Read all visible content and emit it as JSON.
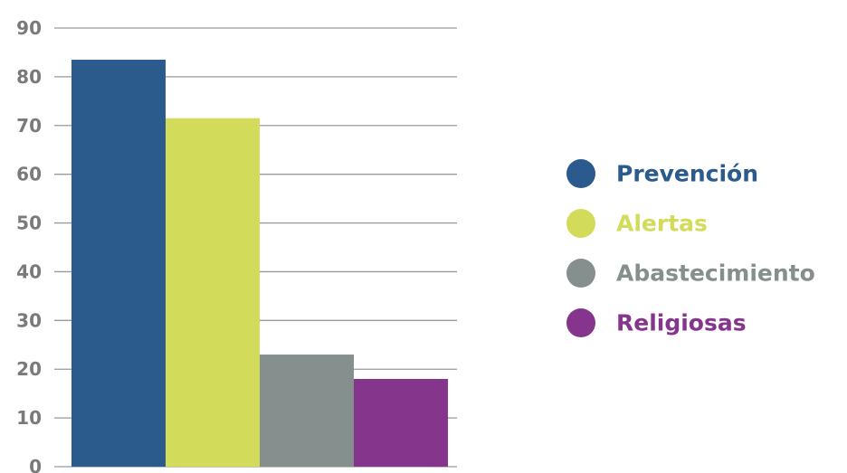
{
  "chart_data": {
    "type": "bar",
    "title": "",
    "xlabel": "",
    "ylabel": "",
    "ylim": [
      0,
      90
    ],
    "y_ticks": [
      "0",
      "10",
      "20",
      "30",
      "40",
      "50",
      "60",
      "70",
      "80",
      "90"
    ],
    "grid": true,
    "legend_position": "right",
    "series": [
      {
        "name": "Prevención",
        "value": 83.5,
        "color": "#2b5a8c"
      },
      {
        "name": "Alertas",
        "value": 71.5,
        "color": "#d3dc5a"
      },
      {
        "name": "Abastecimiento",
        "value": 23,
        "color": "#858f8e"
      },
      {
        "name": "Religiosas",
        "value": 18,
        "color": "#85358c"
      }
    ],
    "colors": {
      "grid": "#9a9a9a",
      "tick_text": "#7a7a7a"
    }
  }
}
